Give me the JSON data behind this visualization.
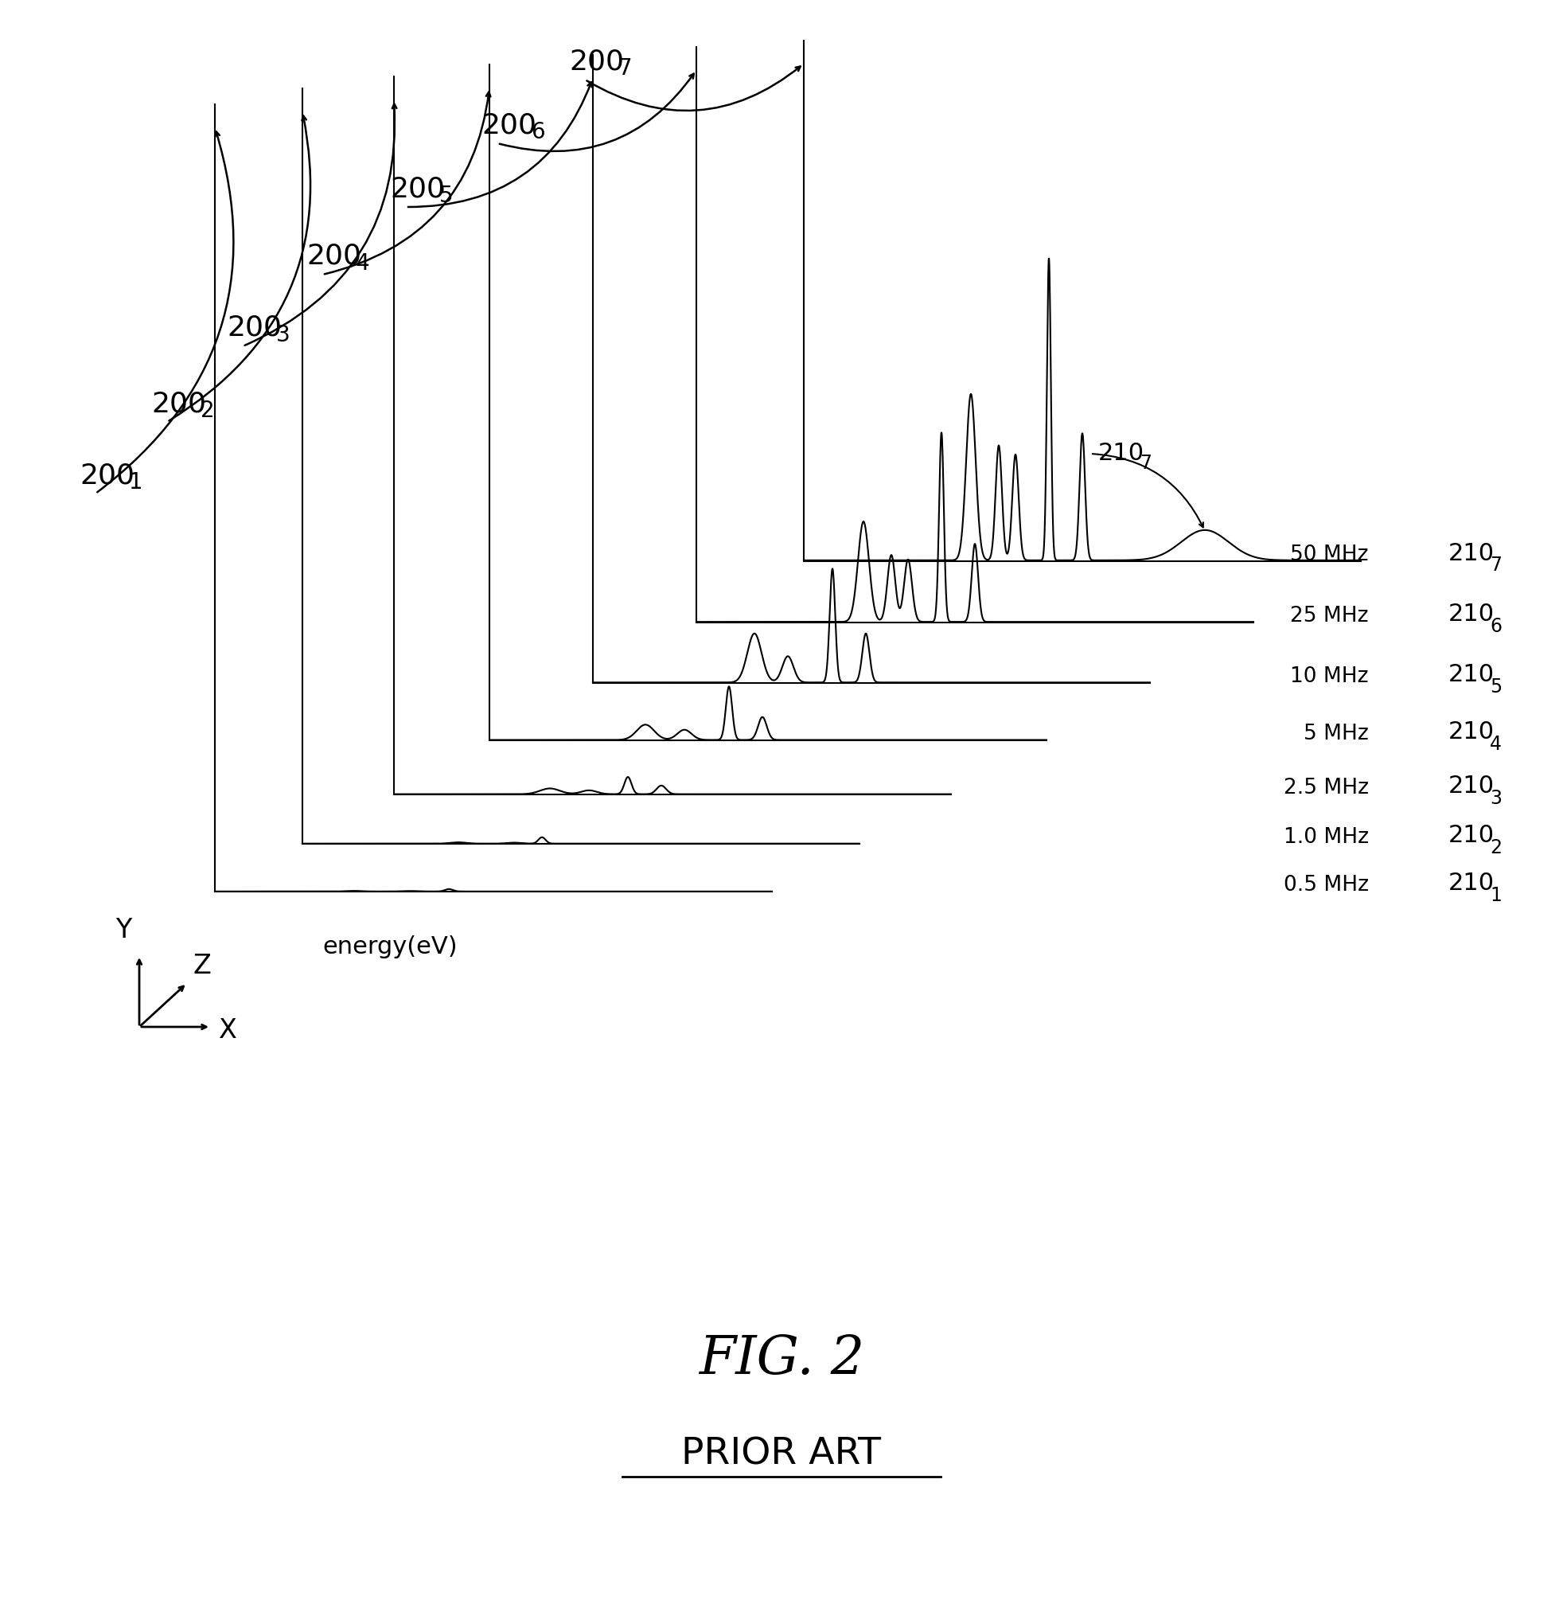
{
  "title": "FIG. 2",
  "subtitle": "PRIOR ART",
  "xlabel": "energy(eV)",
  "background_color": "#ffffff",
  "frequencies": [
    "0.5 MHz",
    "1.0 MHz",
    "2.5 MHz",
    "5 MHz",
    "10 MHz",
    "25 MHz",
    "50 MHz"
  ],
  "n_curves": 7,
  "line_color": "#000000",
  "line_width": 1.5,
  "font_size_200": 26,
  "font_size_200_sub": 20,
  "font_size_210": 22,
  "font_size_210_sub": 17,
  "font_size_freq": 19,
  "font_size_title": 48,
  "font_size_subtitle": 34,
  "font_size_axis_label": 22,
  "font_size_xyz": 24
}
